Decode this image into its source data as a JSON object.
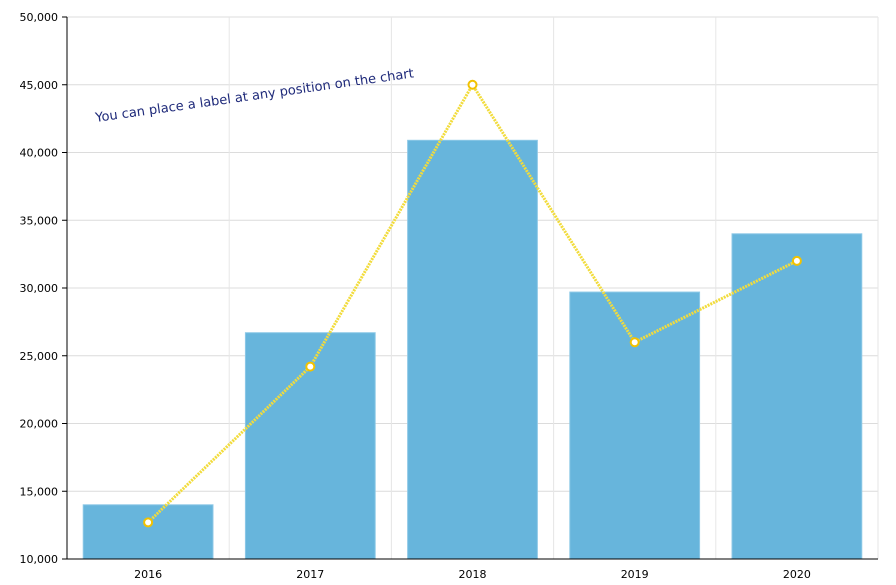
{
  "chart_data": {
    "type": "bar",
    "categories": [
      "2016",
      "2017",
      "2018",
      "2019",
      "2020"
    ],
    "series": [
      {
        "type": "bar",
        "values": [
          14000,
          26700,
          40900,
          29700,
          34000
        ],
        "color": "#67b5dc"
      },
      {
        "type": "line",
        "values": [
          12700,
          24200,
          45000,
          26000,
          32000
        ],
        "color": "#f2dc3c",
        "marker_color": "#f2c200"
      }
    ],
    "ylim": [
      10000,
      50000
    ],
    "yticks": [
      10000,
      15000,
      20000,
      25000,
      30000,
      35000,
      40000,
      45000,
      50000
    ],
    "ytick_labels": [
      "10,000",
      "15,000",
      "20,000",
      "25,000",
      "30,000",
      "35,000",
      "40,000",
      "45,000",
      "50,000"
    ],
    "grid": true,
    "title": "",
    "xlabel": "",
    "ylabel": "",
    "annotation": {
      "text": "You can place a label at any position on the chart",
      "color": "#1f2a7a",
      "rotation_deg": -8
    }
  }
}
